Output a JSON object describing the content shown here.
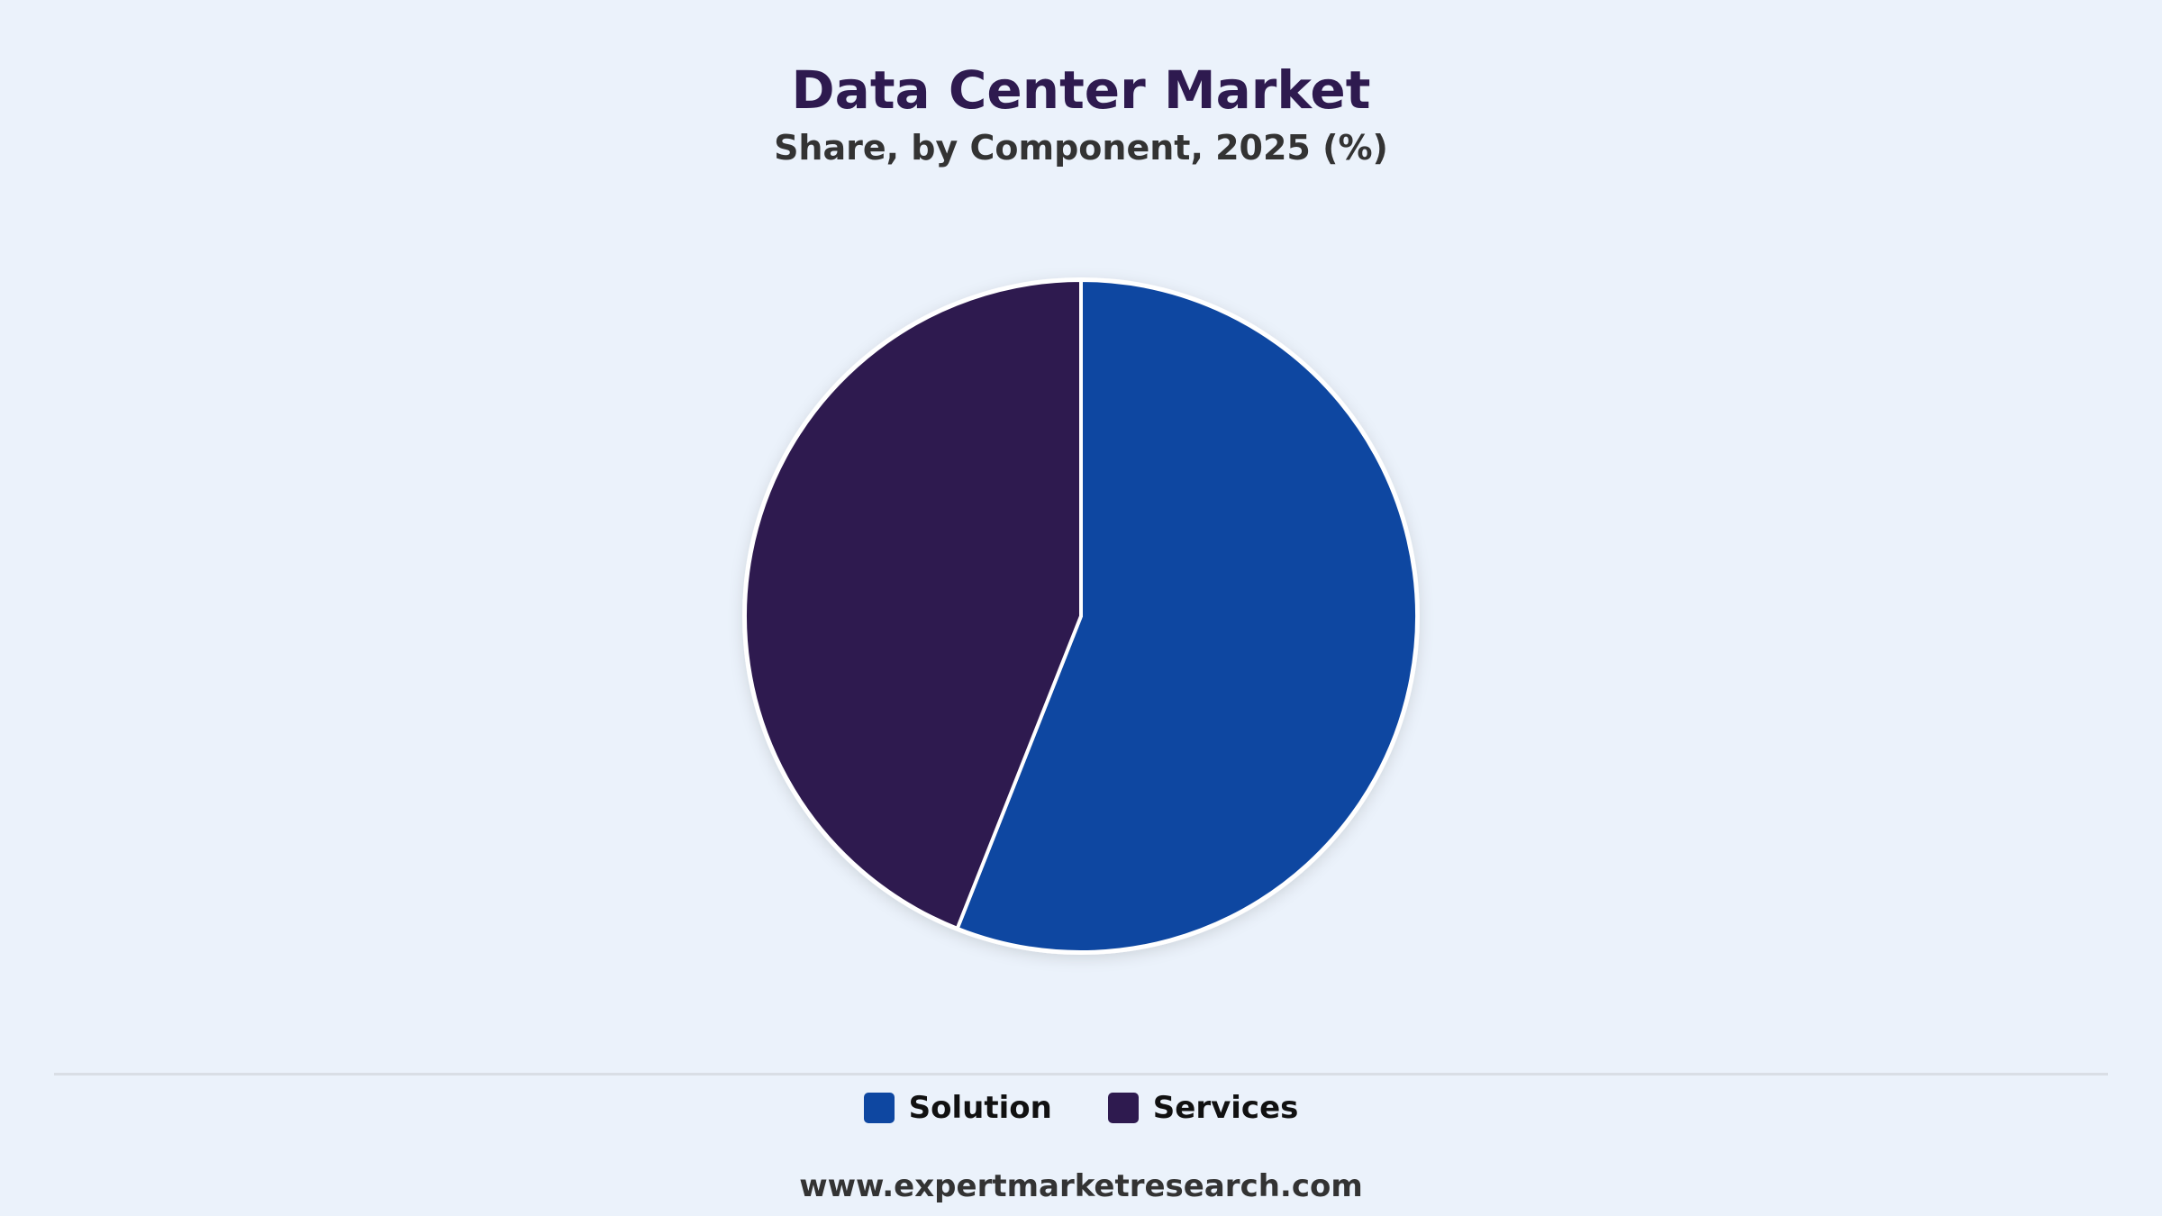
{
  "chart_data": {
    "type": "pie",
    "title": "Data Center Market",
    "subtitle": "Share, by Component, 2025 (%)",
    "categories": [
      "Solution",
      "Services"
    ],
    "values": [
      56,
      44
    ],
    "colors": [
      "#0e47a1",
      "#2e1a4f"
    ],
    "legend_placement": "bottom-center"
  },
  "source": {
    "url": "www.expertmarketresearch.com"
  }
}
